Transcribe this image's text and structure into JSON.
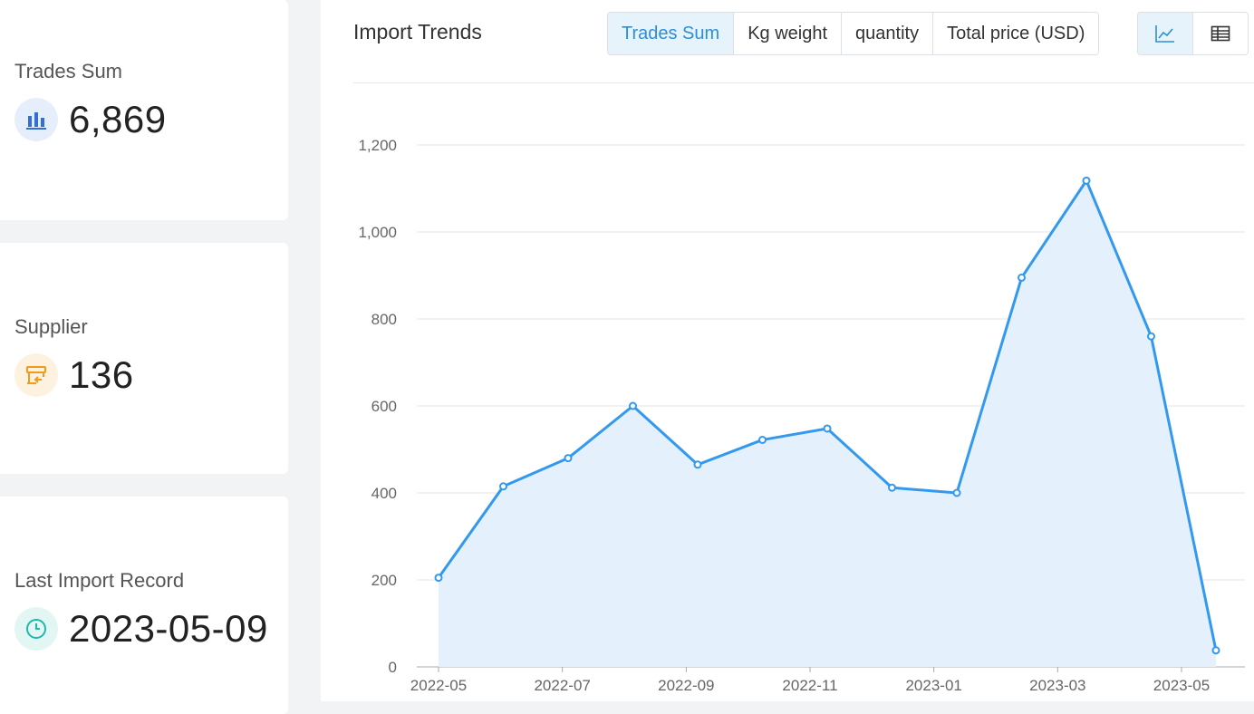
{
  "stats": [
    {
      "label": "Trades Sum",
      "value": "6,869",
      "icon": "bar-chart-icon",
      "color": "#2f6fd6"
    },
    {
      "label": "Supplier",
      "value": "136",
      "icon": "supplier-store-icon",
      "color": "#f29b1a"
    },
    {
      "label": "Last Import Record",
      "value": "2023-05-09",
      "icon": "clock-icon",
      "color": "#1fb8ad"
    }
  ],
  "panel": {
    "title": "Import Trends",
    "metric_tabs": [
      "Trades Sum",
      "Kg weight",
      "quantity",
      "Total price (USD)"
    ],
    "active_tab": "Trades Sum",
    "view_tabs": [
      {
        "icon": "line-chart-icon",
        "active": true
      },
      {
        "icon": "table-icon",
        "active": false
      }
    ]
  },
  "chart_data": {
    "type": "area",
    "title": "",
    "xlabel": "",
    "ylabel": "",
    "ylim": [
      0,
      1200
    ],
    "y_ticks": [
      "0",
      "200",
      "400",
      "600",
      "800",
      "1,000",
      "1,200"
    ],
    "x_ticks": [
      "2022-05",
      "2022-07",
      "2022-09",
      "2022-11",
      "2023-01",
      "2023-03",
      "2023-05"
    ],
    "grid": true,
    "line_color": "#3399ee",
    "fill_color": "#e4f1fc",
    "x": [
      "2022-05",
      "2022-06",
      "2022-07",
      "2022-08",
      "2022-09",
      "2022-10",
      "2022-11",
      "2022-12",
      "2023-01",
      "2023-02",
      "2023-03",
      "2023-04",
      "2023-05"
    ],
    "values": [
      205,
      415,
      480,
      600,
      465,
      522,
      548,
      412,
      400,
      895,
      1118,
      760,
      38
    ]
  }
}
